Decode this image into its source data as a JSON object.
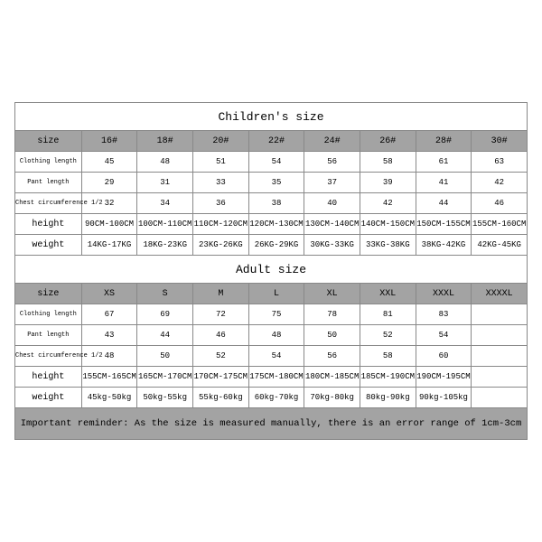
{
  "colors": {
    "header_bg": "#a3a3a3",
    "border": "#888888",
    "bg": "#ffffff",
    "text": "#000000"
  },
  "font": {
    "family": "Courier New",
    "title_size": 13,
    "cell_size": 9
  },
  "children": {
    "title": "Children's size",
    "headers": [
      "size",
      "16#",
      "18#",
      "20#",
      "22#",
      "24#",
      "26#",
      "28#",
      "30#"
    ],
    "rows": [
      {
        "label": "Clothing length",
        "small": true,
        "cells": [
          "45",
          "48",
          "51",
          "54",
          "56",
          "58",
          "61",
          "63"
        ]
      },
      {
        "label": "Pant length",
        "small": true,
        "cells": [
          "29",
          "31",
          "33",
          "35",
          "37",
          "39",
          "41",
          "42"
        ]
      },
      {
        "label": "Chest circumference 1/2",
        "small": true,
        "cells": [
          "32",
          "34",
          "36",
          "38",
          "40",
          "42",
          "44",
          "46"
        ]
      },
      {
        "label": "height",
        "small": false,
        "cells": [
          "90CM-100CM",
          "100CM-110CM",
          "110CM-120CM",
          "120CM-130CM",
          "130CM-140CM",
          "140CM-150CM",
          "150CM-155CM",
          "155CM-160CM"
        ]
      },
      {
        "label": "weight",
        "small": false,
        "cells": [
          "14KG-17KG",
          "18KG-23KG",
          "23KG-26KG",
          "26KG-29KG",
          "30KG-33KG",
          "33KG-38KG",
          "38KG-42KG",
          "42KG-45KG"
        ]
      }
    ]
  },
  "adult": {
    "title": "Adult size",
    "headers": [
      "size",
      "XS",
      "S",
      "M",
      "L",
      "XL",
      "XXL",
      "XXXL",
      "XXXXL"
    ],
    "rows": [
      {
        "label": "Clothing length",
        "small": true,
        "cells": [
          "67",
          "69",
          "72",
          "75",
          "78",
          "81",
          "83",
          ""
        ]
      },
      {
        "label": "Pant length",
        "small": true,
        "cells": [
          "43",
          "44",
          "46",
          "48",
          "50",
          "52",
          "54",
          ""
        ]
      },
      {
        "label": "Chest circumference 1/2",
        "small": true,
        "cells": [
          "48",
          "50",
          "52",
          "54",
          "56",
          "58",
          "60",
          ""
        ]
      },
      {
        "label": "height",
        "small": false,
        "cells": [
          "155CM-165CM",
          "165CM-170CM",
          "170CM-175CM",
          "175CM-180CM",
          "180CM-185CM",
          "185CM-190CM",
          "190CM-195CM",
          ""
        ]
      },
      {
        "label": "weight",
        "small": false,
        "cells": [
          "45kg-50kg",
          "50kg-55kg",
          "55kg-60kg",
          "60kg-70kg",
          "70kg-80kg",
          "80kg-90kg",
          "90kg-105kg",
          ""
        ]
      }
    ]
  },
  "reminder": "Important reminder: As the size is measured manually, there is an error range of 1cm-3cm"
}
